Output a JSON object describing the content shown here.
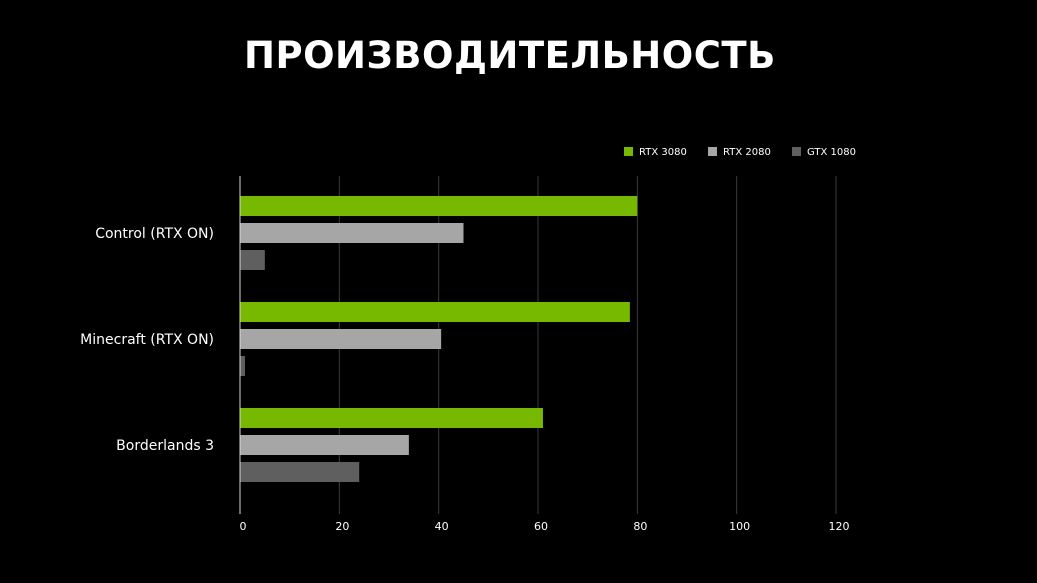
{
  "title": "ПРОИЗВОДИТЕЛЬНОСТЬ",
  "chart_data": {
    "type": "bar",
    "orientation": "horizontal",
    "title": "ПРОИЗВОДИТЕЛЬНОСТЬ",
    "categories": [
      "Control (RTX ON)",
      "Minecraft (RTX ON)",
      "Borderlands 3"
    ],
    "series": [
      {
        "name": "RTX 3080",
        "color": "#76b900",
        "values": [
          80,
          78.5,
          61
        ]
      },
      {
        "name": "RTX 2080",
        "color": "#a6a6a6",
        "values": [
          45,
          40.5,
          34
        ]
      },
      {
        "name": "GTX 1080",
        "color": "#5f5f5f",
        "values": [
          5,
          1,
          24
        ]
      }
    ],
    "xlim": [
      0,
      120
    ],
    "xticks": [
      0,
      20,
      40,
      60,
      80,
      100,
      120
    ],
    "xlabel": "",
    "ylabel": "",
    "grid": true,
    "legend": "top-right"
  }
}
